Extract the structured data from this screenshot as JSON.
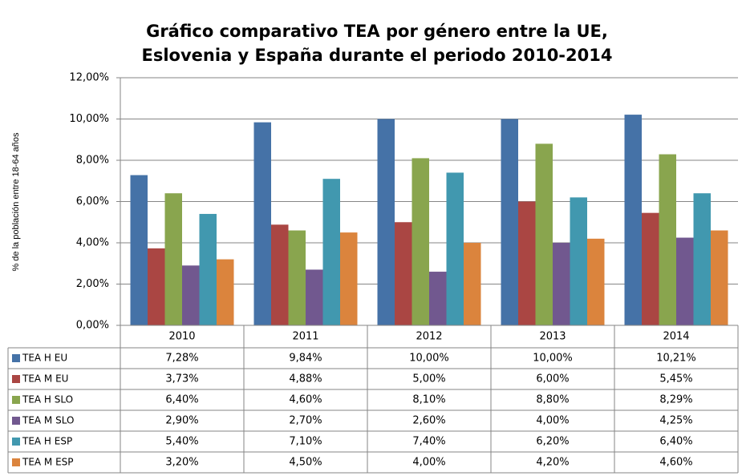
{
  "chart_data": {
    "type": "bar",
    "title": [
      "Gráfico comparativo TEA por género entre la UE,",
      "Eslovenia y España durante el periodo 2010-2014"
    ],
    "y_label": "% de la población  entre 18-64 años",
    "categories": [
      "2010",
      "2011",
      "2012",
      "2013",
      "2014"
    ],
    "series": [
      {
        "name": "TEA H EU",
        "color": "#4572A7",
        "values": [
          7.28,
          9.84,
          10.0,
          10.0,
          10.21
        ],
        "value_labels": [
          "7,28%",
          "9,84%",
          "10,00%",
          "10,00%",
          "10,21%"
        ]
      },
      {
        "name": "TEA M EU",
        "color": "#AA4643",
        "values": [
          3.73,
          4.88,
          5.0,
          6.0,
          5.45
        ],
        "value_labels": [
          "3,73%",
          "4,88%",
          "5,00%",
          "6,00%",
          "5,45%"
        ]
      },
      {
        "name": "TEA H SLO",
        "color": "#89A54E",
        "values": [
          6.4,
          4.6,
          8.1,
          8.8,
          8.29
        ],
        "value_labels": [
          "6,40%",
          "4,60%",
          "8,10%",
          "8,80%",
          "8,29%"
        ]
      },
      {
        "name": "TEA M SLO",
        "color": "#71588F",
        "values": [
          2.9,
          2.7,
          2.6,
          4.0,
          4.25
        ],
        "value_labels": [
          "2,90%",
          "2,70%",
          "2,60%",
          "4,00%",
          "4,25%"
        ]
      },
      {
        "name": "TEA H ESP",
        "color": "#4198AF",
        "values": [
          5.4,
          7.1,
          7.4,
          6.2,
          6.4
        ],
        "value_labels": [
          "5,40%",
          "7,10%",
          "7,40%",
          "6,20%",
          "6,40%"
        ]
      },
      {
        "name": "TEA M ESP",
        "color": "#DB843D",
        "values": [
          3.2,
          4.5,
          4.0,
          4.2,
          4.6
        ],
        "value_labels": [
          "3,20%",
          "4,50%",
          "4,00%",
          "4,20%",
          "4,60%"
        ]
      }
    ],
    "ylim": [
      0,
      12
    ],
    "yticks": [
      {
        "value": 0,
        "label": "0,00%"
      },
      {
        "value": 2,
        "label": "2,00%"
      },
      {
        "value": 4,
        "label": "4,00%"
      },
      {
        "value": 6,
        "label": "6,00%"
      },
      {
        "value": 8,
        "label": "8,00%"
      },
      {
        "value": 10,
        "label": "10,00%"
      },
      {
        "value": 12,
        "label": "12,00%"
      }
    ],
    "grid": true
  }
}
